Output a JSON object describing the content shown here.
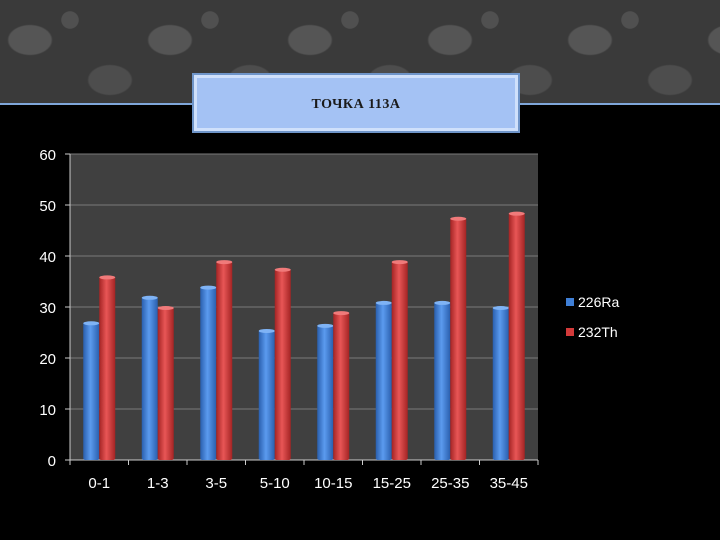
{
  "slide": {
    "title": "ТОЧКА 113А"
  },
  "colors": {
    "background": "#000000",
    "plot_area": "#404040",
    "series_ra": "#3f7fd6",
    "series_th": "#d33a3a",
    "axis_text": "#ffffff",
    "gridline": "#7a7a7a"
  },
  "chart_data": {
    "type": "bar",
    "title": "",
    "xlabel": "",
    "ylabel": "",
    "ylim": [
      0,
      60
    ],
    "yticks": [
      0,
      10,
      20,
      30,
      40,
      50,
      60
    ],
    "grid": true,
    "legend_position": "right",
    "categories": [
      "0-1",
      "1-3",
      "3-5",
      "5-10",
      "10-15",
      "15-25",
      "25-35",
      "35-45"
    ],
    "series": [
      {
        "name": "226Ra",
        "values": [
          27,
          32,
          34,
          25.5,
          26.5,
          31,
          31,
          30
        ]
      },
      {
        "name": "232Th",
        "values": [
          36,
          30,
          39,
          37.5,
          29,
          39,
          47.5,
          48.5
        ]
      }
    ]
  }
}
